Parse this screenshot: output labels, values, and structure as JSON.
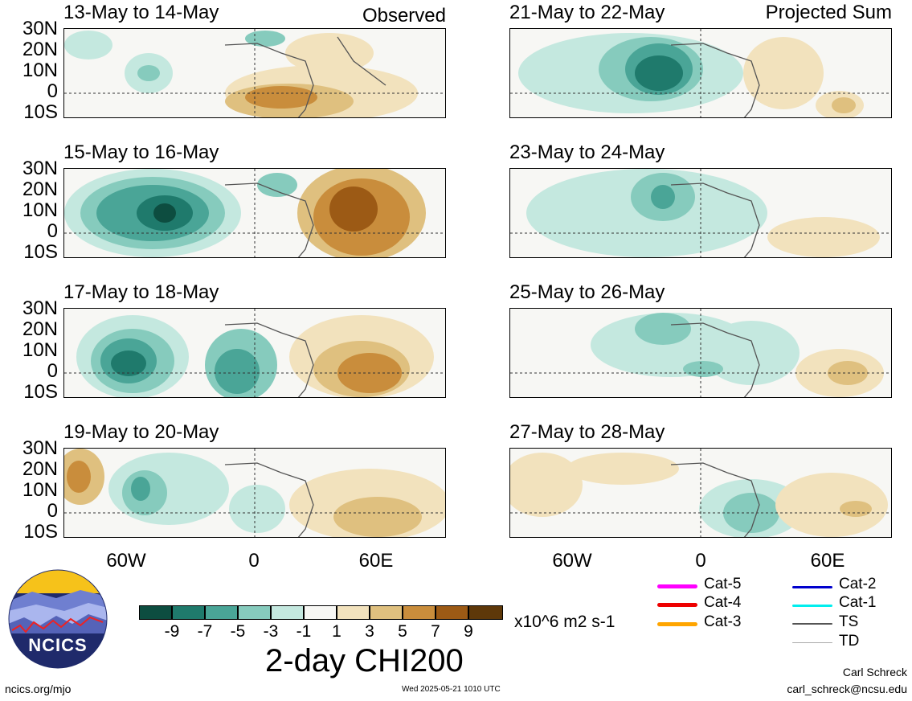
{
  "panels": [
    {
      "title": "13-May to 14-May",
      "label": "Observed",
      "col": 0,
      "row": 0
    },
    {
      "title": "15-May to 16-May",
      "label": "",
      "col": 0,
      "row": 1
    },
    {
      "title": "17-May to 18-May",
      "label": "",
      "col": 0,
      "row": 2
    },
    {
      "title": "19-May to 20-May",
      "label": "",
      "col": 0,
      "row": 3
    },
    {
      "title": "21-May to 22-May",
      "label": "Projected Sum",
      "col": 1,
      "row": 0
    },
    {
      "title": "23-May to 24-May",
      "label": "",
      "col": 1,
      "row": 1
    },
    {
      "title": "25-May to 26-May",
      "label": "",
      "col": 1,
      "row": 2
    },
    {
      "title": "27-May to 28-May",
      "label": "",
      "col": 1,
      "row": 3
    }
  ],
  "lat_labels": [
    "30N",
    "20N",
    "10N",
    "0",
    "10S"
  ],
  "lon_labels": [
    "60W",
    "0",
    "60E"
  ],
  "colorbar": {
    "ticks": [
      "-9",
      "-7",
      "-5",
      "-3",
      "-1",
      "1",
      "3",
      "5",
      "7",
      "9"
    ],
    "colors": [
      "#0d4d40",
      "#1f7a6c",
      "#4aa597",
      "#86cbbd",
      "#c4e8df",
      "#f7f7f4",
      "#f2e2bd",
      "#dfc07f",
      "#c98d3c",
      "#9c5a15",
      "#5e3809"
    ],
    "units": "x10^6 m2 s-1",
    "title": "2-day CHI200"
  },
  "legend": [
    {
      "label": "Cat-5",
      "color": "#ff00ff"
    },
    {
      "label": "Cat-4",
      "color": "#ee0000"
    },
    {
      "label": "Cat-3",
      "color": "#ffa500"
    },
    {
      "label": "Cat-2",
      "color": "#0000cd"
    },
    {
      "label": "Cat-1",
      "color": "#00eeee"
    },
    {
      "label": "TS",
      "color": "#555555"
    },
    {
      "label": "TD",
      "color": "#aaaaaa"
    }
  ],
  "logo": {
    "text": "NCICS"
  },
  "footer": {
    "left": "ncics.org/mjo",
    "center": "Wed 2025-05-21 1010 UTC",
    "author": "Carl Schreck",
    "email": "carl_schreck@ncsu.edu"
  }
}
